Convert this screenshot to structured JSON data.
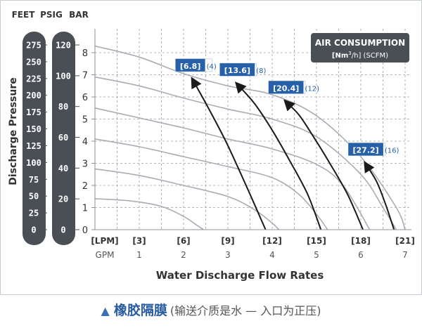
{
  "chart_data": {
    "type": "line",
    "ylabel": "Discharge Pressure",
    "xlabel": "Water Discharge Flow Rates",
    "left_axis_headers": [
      "FEET",
      "PSIG",
      "BAR"
    ],
    "feet_ticks": [
      "275",
      "250",
      "225",
      "200",
      "175",
      "150",
      "125",
      "100",
      "75",
      "50",
      "25",
      "0"
    ],
    "psig_ticks": [
      "120",
      "100",
      "80",
      "60",
      "40",
      "20",
      "0"
    ],
    "bar_ticks": [
      "8",
      "7",
      "6",
      "5",
      "4",
      "3",
      "2",
      "1",
      "0"
    ],
    "ylim": [
      0,
      8.5
    ],
    "xlim": [
      0,
      7.1
    ],
    "x_lpm_ticks": [
      "[LPM]",
      "[3]",
      "[6]",
      "[9]",
      "[12]",
      "[15]",
      "[18]",
      "[21]"
    ],
    "x_gpm_ticks": [
      "GPM",
      "1",
      "2",
      "3",
      "4",
      "5",
      "6",
      "7"
    ],
    "grid": true,
    "legend": {
      "title": "AIR CONSUMPTION",
      "subtitle_unit": "[Nm",
      "subtitle_sup": "3",
      "subtitle_rest": "/h] (SCFM)",
      "placement": "top-right"
    },
    "pressure_curves": [
      {
        "points": [
          [
            0,
            8.3
          ],
          [
            1,
            7.8
          ],
          [
            2,
            7.05
          ],
          [
            3,
            6.5
          ],
          [
            4,
            6.1
          ],
          [
            5,
            5.15
          ],
          [
            6,
            3.3
          ],
          [
            6.8,
            1.0
          ],
          [
            7,
            0
          ]
        ]
      },
      {
        "points": [
          [
            0,
            6.9
          ],
          [
            1,
            6.5
          ],
          [
            2,
            5.95
          ],
          [
            3,
            5.45
          ],
          [
            4,
            5.0
          ],
          [
            5,
            4.2
          ],
          [
            6,
            2.5
          ],
          [
            6.5,
            1.0
          ],
          [
            6.8,
            0
          ]
        ]
      },
      {
        "points": [
          [
            0,
            5.5
          ],
          [
            1,
            5.05
          ],
          [
            2,
            4.6
          ],
          [
            3,
            4.1
          ],
          [
            4,
            3.65
          ],
          [
            5,
            2.95
          ],
          [
            5.6,
            2.0
          ],
          [
            6.2,
            0
          ]
        ]
      },
      {
        "points": [
          [
            0,
            4.1
          ],
          [
            1,
            3.75
          ],
          [
            2,
            3.3
          ],
          [
            3,
            2.85
          ],
          [
            4,
            2.35
          ],
          [
            4.6,
            1.6
          ],
          [
            5,
            0.7
          ],
          [
            5.25,
            0
          ]
        ]
      },
      {
        "points": [
          [
            0,
            2.75
          ],
          [
            1,
            2.45
          ],
          [
            2,
            2.0
          ],
          [
            3,
            1.5
          ],
          [
            3.6,
            0.9
          ],
          [
            4,
            0.3
          ],
          [
            4.15,
            0
          ]
        ]
      },
      {
        "points": [
          [
            0,
            1.4
          ],
          [
            0.8,
            1.3
          ],
          [
            1.5,
            1.05
          ],
          [
            2.0,
            0.6
          ],
          [
            2.3,
            0.2
          ],
          [
            2.45,
            0
          ]
        ]
      }
    ],
    "air_curves": [
      {
        "label_main": "[6.8]",
        "label_sub": "(4)",
        "points": [
          [
            3.85,
            0
          ],
          [
            3.5,
            1.6
          ],
          [
            3.0,
            3.8
          ],
          [
            2.6,
            5.35
          ],
          [
            2.2,
            6.8
          ]
        ]
      },
      {
        "label_main": "[13.6]",
        "label_sub": "(8)",
        "points": [
          [
            5.1,
            0
          ],
          [
            4.8,
            1.6
          ],
          [
            4.4,
            3.1
          ],
          [
            4.0,
            4.5
          ],
          [
            3.6,
            5.7
          ],
          [
            3.2,
            6.6
          ]
        ]
      },
      {
        "label_main": "[20.4]",
        "label_sub": "(12)",
        "points": [
          [
            6.05,
            0
          ],
          [
            5.7,
            1.6
          ],
          [
            5.3,
            3.0
          ],
          [
            4.9,
            4.3
          ],
          [
            4.6,
            5.2
          ],
          [
            4.3,
            5.8
          ]
        ]
      },
      {
        "label_main": "[27.2]",
        "label_sub": "(16)",
        "points": [
          [
            6.75,
            0
          ],
          [
            6.55,
            1.2
          ],
          [
            6.35,
            2.2
          ],
          [
            6.1,
            3.0
          ]
        ]
      }
    ]
  },
  "caption": {
    "marker": "▲",
    "main": "橡胶隔膜",
    "sub": "(输送介质是水 — 入口为正压)"
  }
}
